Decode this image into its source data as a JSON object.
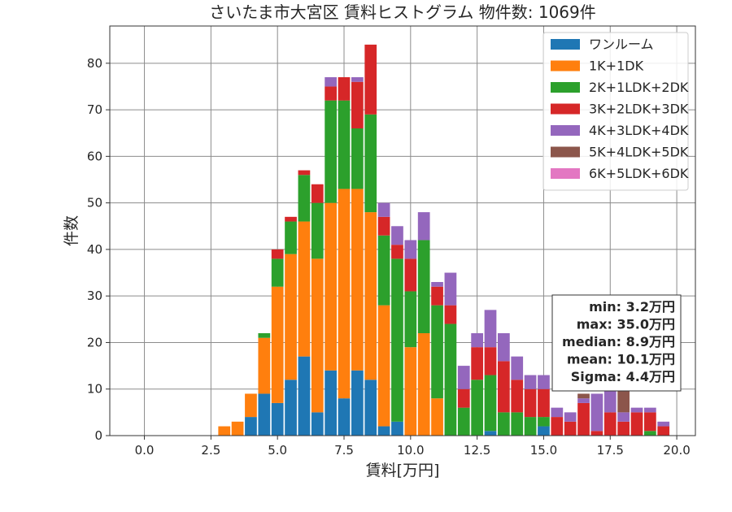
{
  "chart_data": {
    "type": "bar",
    "stacked": true,
    "title": "さいたま市大宮区 賃料ヒストグラム 物件数: 1069件",
    "xlabel": "賃料[万円]",
    "ylabel": "件数",
    "xlim": [
      -1.3,
      20.7
    ],
    "ylim": [
      0,
      88
    ],
    "xticks": [
      0.0,
      2.5,
      5.0,
      7.5,
      10.0,
      12.5,
      15.0,
      17.5,
      20.0
    ],
    "xtick_labels": [
      "0.0",
      "2.5",
      "5.0",
      "7.5",
      "10.0",
      "12.5",
      "15.0",
      "17.5",
      "20.0"
    ],
    "yticks": [
      0,
      10,
      20,
      30,
      40,
      50,
      60,
      70,
      80
    ],
    "ytick_labels": [
      "0",
      "10",
      "20",
      "30",
      "40",
      "50",
      "60",
      "70",
      "80"
    ],
    "grid": true,
    "legend_position": "top-right",
    "bin_width": 0.5,
    "bar_width_fraction": 0.9,
    "x": [
      3.0,
      3.5,
      4.0,
      4.5,
      5.0,
      5.5,
      6.0,
      6.5,
      7.0,
      7.5,
      8.0,
      8.5,
      9.0,
      9.5,
      10.0,
      10.5,
      11.0,
      11.5,
      12.0,
      12.5,
      13.0,
      13.5,
      14.0,
      14.5,
      15.0,
      15.5,
      16.0,
      16.5,
      17.0,
      17.5,
      18.0,
      18.5,
      19.0,
      19.5
    ],
    "series": [
      {
        "name": "ワンルーム",
        "color": "#1f77b4",
        "values": [
          0,
          0,
          4,
          9,
          7,
          12,
          17,
          5,
          14,
          8,
          14,
          12,
          2,
          3,
          0,
          0,
          0,
          0,
          0,
          0,
          1,
          0,
          0,
          0,
          2,
          0,
          0,
          0,
          0,
          0,
          0,
          0,
          0,
          0
        ]
      },
      {
        "name": "1K+1DK",
        "color": "#ff7f0e",
        "values": [
          2,
          3,
          5,
          12,
          25,
          27,
          29,
          33,
          36,
          45,
          39,
          36,
          26,
          0,
          19,
          22,
          8,
          0,
          0,
          0,
          0,
          0,
          0,
          0,
          0,
          0,
          0,
          0,
          0,
          0,
          0,
          0,
          0,
          0
        ]
      },
      {
        "name": "2K+1LDK+2DK",
        "color": "#2ca02c",
        "values": [
          0,
          0,
          0,
          1,
          6,
          7,
          10,
          12,
          22,
          19,
          13,
          21,
          15,
          35,
          12,
          20,
          20,
          24,
          6,
          12,
          12,
          5,
          5,
          4,
          2,
          0,
          0,
          0,
          0,
          0,
          0,
          0,
          1,
          0
        ]
      },
      {
        "name": "3K+2LDK+3DK",
        "color": "#d62728",
        "values": [
          0,
          0,
          0,
          0,
          2,
          1,
          1,
          4,
          3,
          5,
          10,
          15,
          4,
          3,
          7,
          0,
          4,
          4,
          4,
          7,
          6,
          11,
          7,
          6,
          6,
          4,
          3,
          7,
          1,
          5,
          3,
          5,
          4,
          2
        ]
      },
      {
        "name": "4K+3LDK+4DK",
        "color": "#9467bd",
        "values": [
          0,
          0,
          0,
          0,
          0,
          0,
          0,
          0,
          2,
          0,
          1,
          0,
          3,
          4,
          4,
          6,
          1,
          7,
          5,
          3,
          8,
          6,
          5,
          3,
          3,
          2,
          2,
          1,
          8,
          9,
          2,
          1,
          1,
          1
        ]
      },
      {
        "name": "5K+4LDK+5DK",
        "color": "#8c564b",
        "values": [
          0,
          0,
          0,
          0,
          0,
          0,
          0,
          0,
          0,
          0,
          0,
          0,
          0,
          0,
          0,
          0,
          0,
          0,
          0,
          0,
          0,
          0,
          0,
          0,
          0,
          0,
          0,
          1,
          0,
          0,
          5,
          0,
          0,
          0
        ]
      },
      {
        "name": "6K+5LDK+6DK",
        "color": "#e377c2",
        "values": [
          0,
          0,
          0,
          0,
          0,
          0,
          0,
          0,
          0,
          0,
          0,
          0,
          0,
          0,
          0,
          0,
          0,
          0,
          0,
          0,
          0,
          0,
          0,
          0,
          0,
          0,
          0,
          0,
          0,
          3,
          0,
          0,
          0,
          0
        ]
      }
    ],
    "stats_box": {
      "lines": [
        "min: 3.2万円",
        "max: 35.0万円",
        "median: 8.9万円",
        "mean: 10.1万円",
        "Sigma: 4.4万円"
      ]
    }
  }
}
